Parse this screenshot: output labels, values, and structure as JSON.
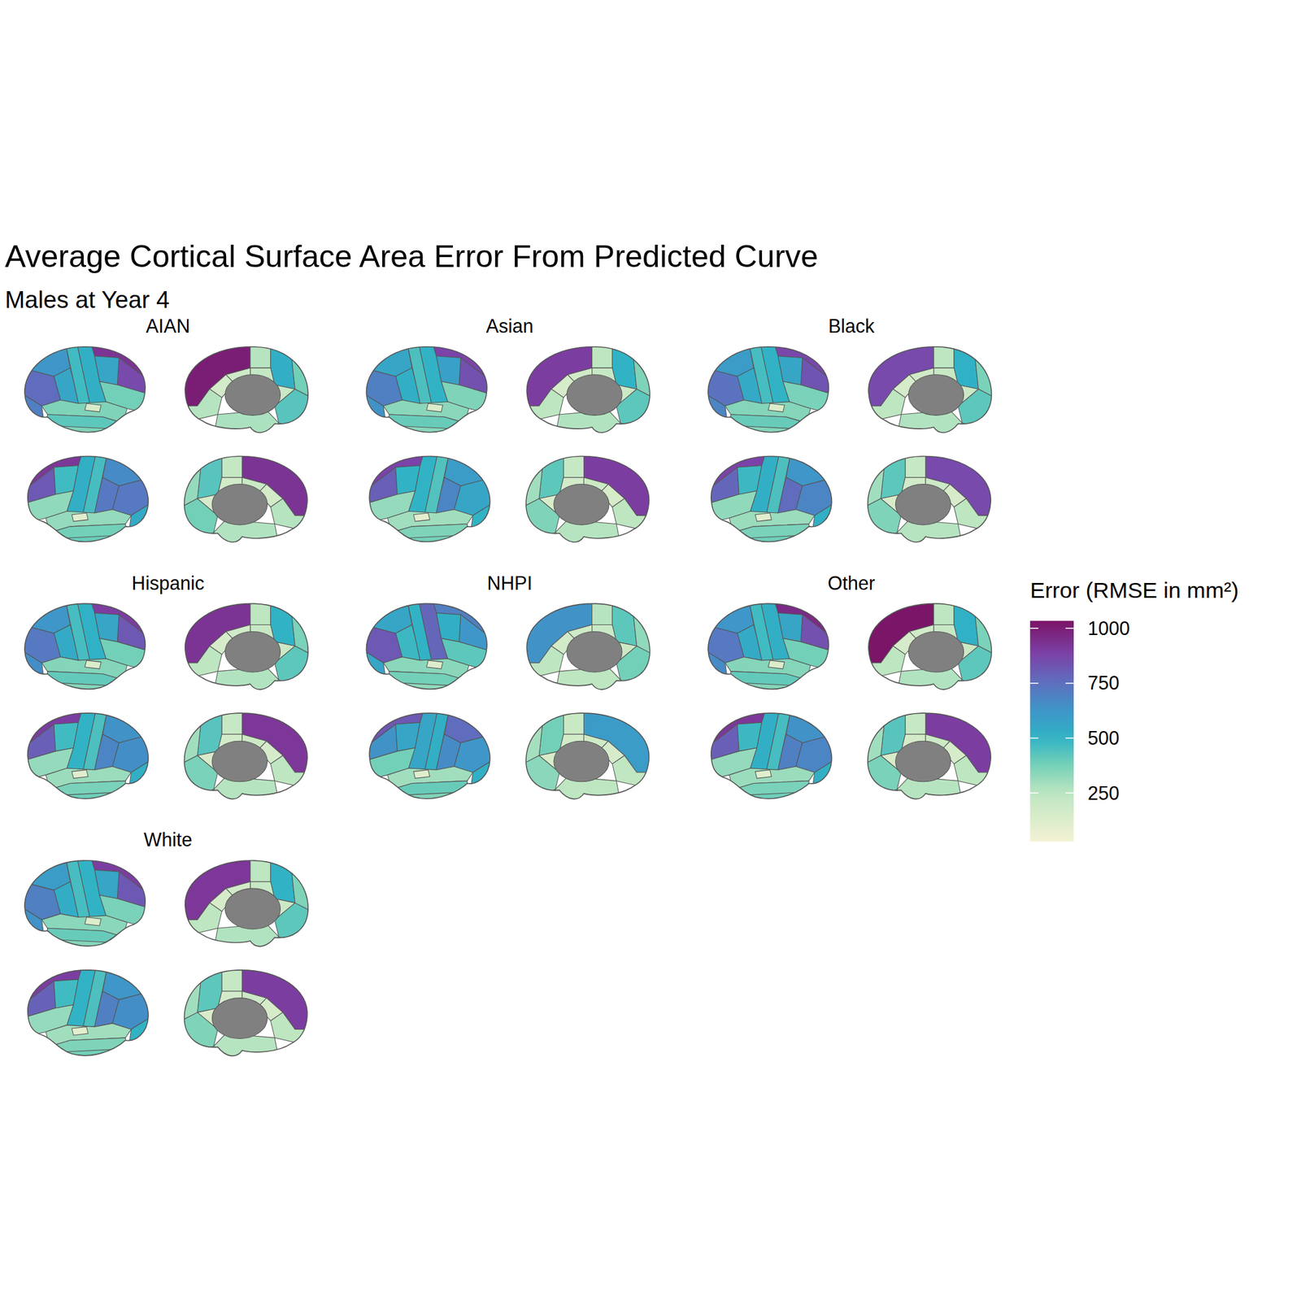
{
  "chart_data": {
    "type": "brain_map",
    "title": "Average Cortical Surface Area Error From Predicted Curve",
    "subtitle": "Males at Year 4",
    "legend_title": "Error (RMSE in mm²)",
    "colorbar": {
      "range": [
        29,
        1034
      ],
      "ticks": [
        250,
        500,
        750,
        1000
      ]
    },
    "panels": [
      {
        "label": "AIAN",
        "cells": [
          [
            930,
            860,
            560,
            380,
            520,
            470,
            620,
            560,
            760,
            700,
            360,
            420,
            360,
            140
          ],
          [
            1000,
            260,
            520,
            380,
            430,
            220,
            180,
            160,
            260,
            200,
            280
          ],
          [
            920,
            820,
            470,
            330,
            520,
            460,
            660,
            720,
            720,
            540,
            320,
            380,
            400,
            110
          ],
          [
            930,
            220,
            430,
            320,
            380,
            170,
            200,
            160,
            260,
            150,
            270
          ]
        ]
      },
      {
        "label": "Asian",
        "cells": [
          [
            880,
            840,
            580,
            360,
            500,
            450,
            560,
            520,
            700,
            640,
            340,
            400,
            340,
            130
          ],
          [
            900,
            250,
            500,
            360,
            420,
            210,
            170,
            150,
            250,
            190,
            270
          ],
          [
            880,
            800,
            500,
            320,
            500,
            440,
            600,
            680,
            560,
            500,
            300,
            360,
            380,
            100
          ],
          [
            900,
            210,
            420,
            300,
            360,
            160,
            190,
            150,
            250,
            140,
            260
          ]
        ]
      },
      {
        "label": "Black",
        "cells": [
          [
            870,
            830,
            560,
            370,
            500,
            460,
            600,
            540,
            740,
            680,
            350,
            400,
            350,
            130
          ],
          [
            860,
            250,
            510,
            370,
            420,
            210,
            170,
            150,
            250,
            190,
            270
          ],
          [
            880,
            780,
            480,
            330,
            520,
            450,
            620,
            760,
            680,
            520,
            310,
            370,
            390,
            110
          ],
          [
            860,
            210,
            420,
            300,
            360,
            160,
            190,
            150,
            250,
            140,
            260
          ]
        ]
      },
      {
        "label": "Hispanic",
        "cells": [
          [
            900,
            820,
            560,
            380,
            510,
            460,
            620,
            540,
            720,
            650,
            350,
            410,
            350,
            130
          ],
          [
            930,
            250,
            500,
            370,
            420,
            210,
            170,
            150,
            250,
            190,
            270
          ],
          [
            900,
            800,
            470,
            320,
            500,
            450,
            640,
            680,
            650,
            520,
            310,
            370,
            390,
            110
          ],
          [
            920,
            210,
            430,
            300,
            370,
            160,
            190,
            150,
            250,
            140,
            260
          ]
        ]
      },
      {
        "label": "NHPI",
        "cells": [
          [
            700,
            620,
            520,
            420,
            780,
            500,
            560,
            480,
            820,
            560,
            340,
            380,
            330,
            120
          ],
          [
            640,
            260,
            420,
            330,
            380,
            200,
            180,
            170,
            250,
            190,
            250
          ],
          [
            820,
            640,
            560,
            380,
            560,
            520,
            760,
            660,
            620,
            520,
            300,
            400,
            360,
            110
          ],
          [
            600,
            200,
            380,
            290,
            340,
            160,
            180,
            150,
            240,
            140,
            250
          ]
        ]
      },
      {
        "label": "Other",
        "cells": [
          [
            960,
            840,
            560,
            380,
            520,
            470,
            620,
            540,
            720,
            660,
            350,
            410,
            350,
            130
          ],
          [
            1030,
            250,
            510,
            370,
            420,
            210,
            170,
            150,
            250,
            190,
            270
          ],
          [
            920,
            800,
            480,
            320,
            520,
            460,
            640,
            700,
            680,
            520,
            310,
            370,
            390,
            110
          ],
          [
            900,
            210,
            430,
            300,
            370,
            160,
            190,
            150,
            250,
            140,
            260
          ]
        ]
      },
      {
        "label": "White",
        "cells": [
          [
            900,
            820,
            560,
            370,
            500,
            460,
            600,
            530,
            700,
            640,
            340,
            400,
            350,
            130
          ],
          [
            920,
            250,
            500,
            360,
            420,
            210,
            170,
            150,
            250,
            190,
            270
          ],
          [
            900,
            790,
            470,
            320,
            500,
            450,
            620,
            700,
            650,
            500,
            300,
            360,
            380,
            100
          ],
          [
            900,
            210,
            420,
            300,
            360,
            160,
            190,
            150,
            250,
            140,
            260
          ]
        ]
      }
    ]
  }
}
